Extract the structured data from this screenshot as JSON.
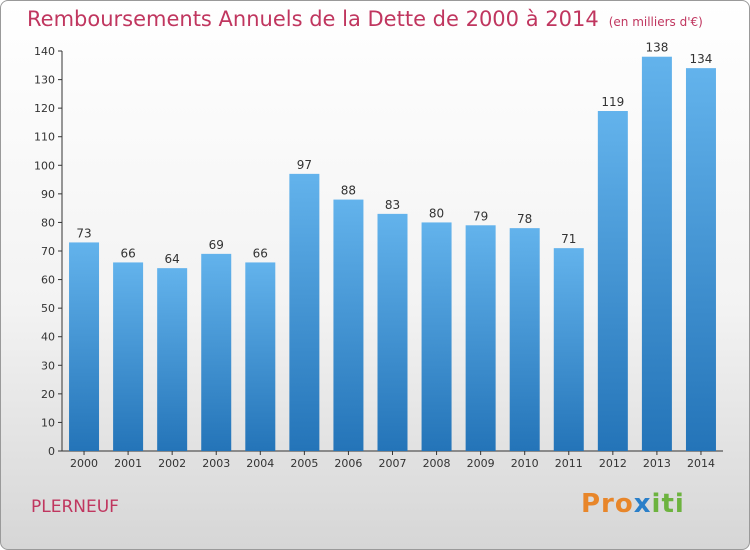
{
  "header": {
    "title": "Remboursements Annuels de la Dette de 2000 à 2014",
    "subtitle": "(en milliers d'€)"
  },
  "footer": {
    "city": "PLERNEUF",
    "logo": [
      "Pro",
      "x",
      "iti"
    ]
  },
  "colors": {
    "bar_top": "#63b3ec",
    "bar_bottom": "#2474b8",
    "title": "#c0365f"
  },
  "chart_data": {
    "type": "bar",
    "title": "Remboursements Annuels de la Dette de 2000 à 2014",
    "subtitle": "(en milliers d'€)",
    "categories": [
      "2000",
      "2001",
      "2002",
      "2003",
      "2004",
      "2005",
      "2006",
      "2007",
      "2008",
      "2009",
      "2010",
      "2011",
      "2012",
      "2013",
      "2014"
    ],
    "values": [
      73,
      66,
      64,
      69,
      66,
      97,
      88,
      83,
      80,
      79,
      78,
      71,
      119,
      138,
      134
    ],
    "ylim": [
      0,
      140
    ],
    "yticks": [
      0,
      10,
      20,
      30,
      40,
      50,
      60,
      70,
      80,
      90,
      100,
      110,
      120,
      130,
      140
    ],
    "grid": false,
    "xlabel": "",
    "ylabel": ""
  }
}
